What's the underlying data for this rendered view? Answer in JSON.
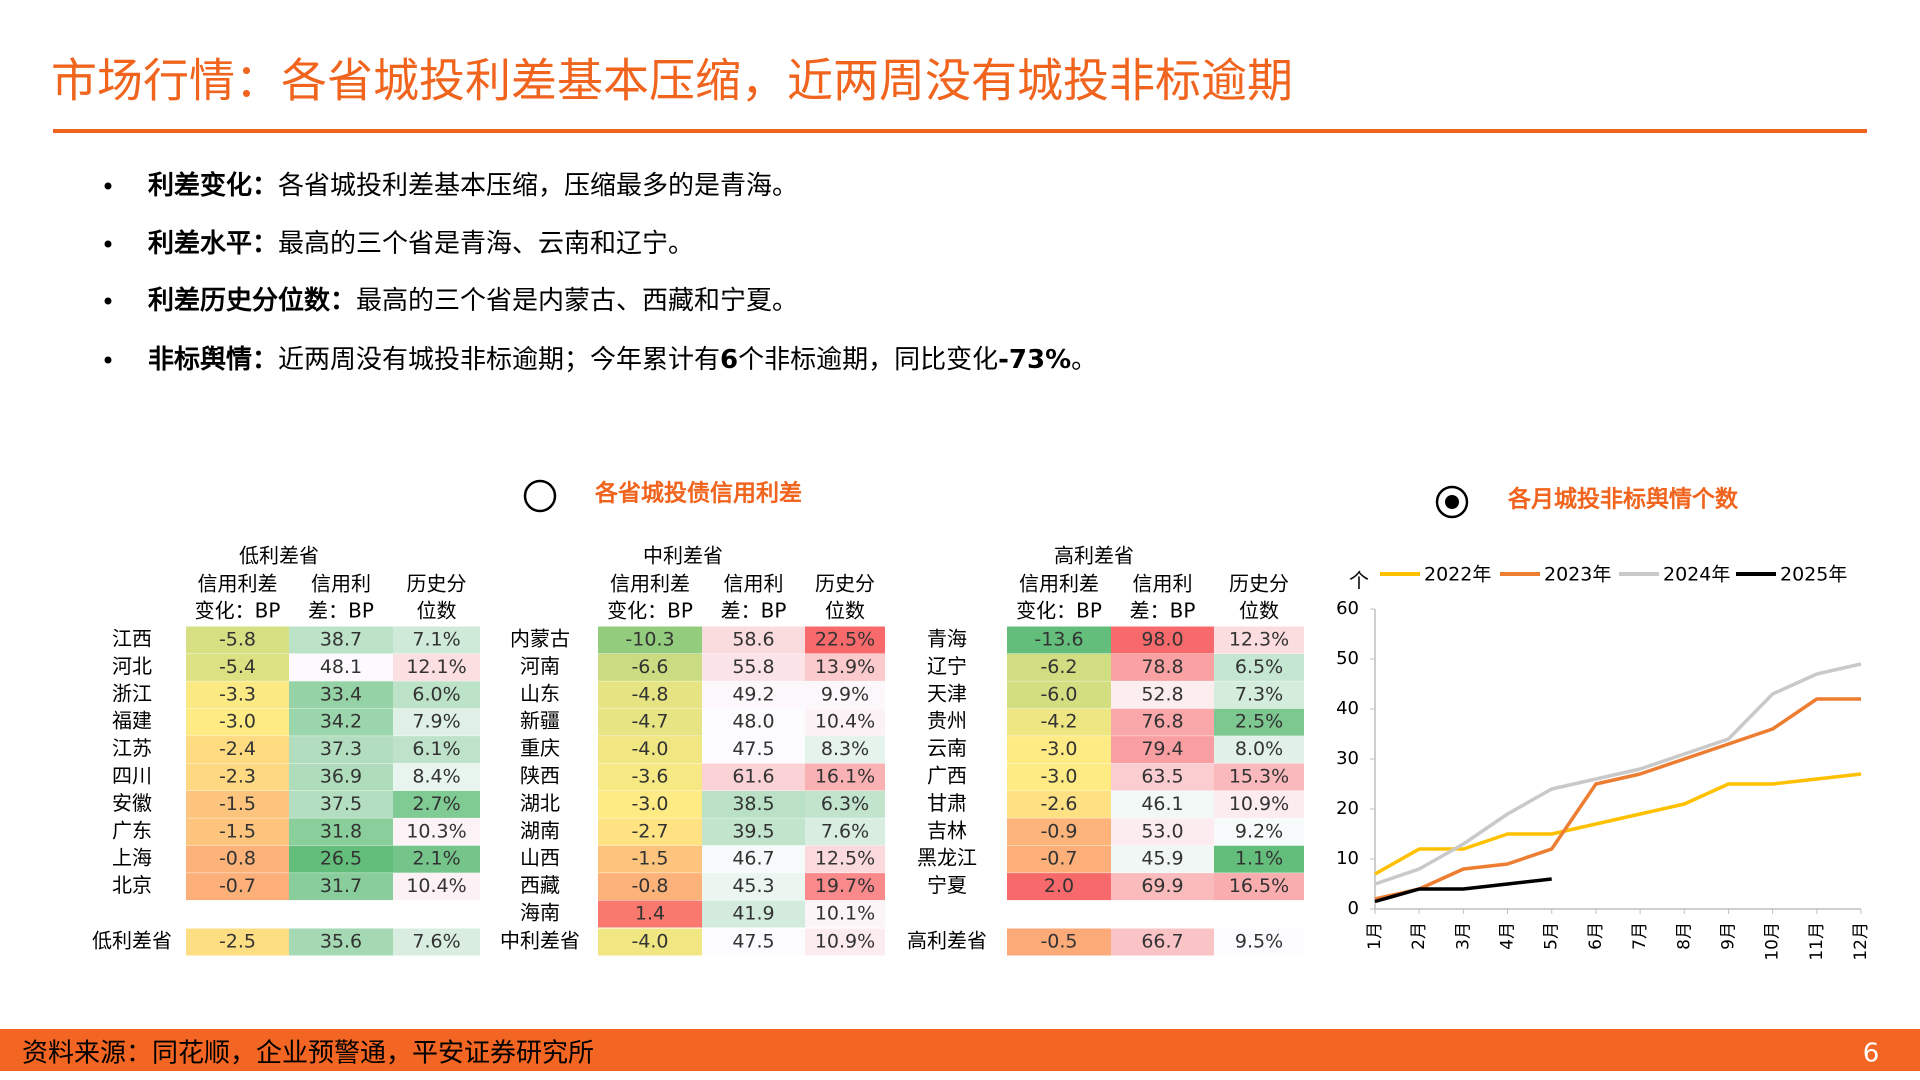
{
  "header": {
    "title": "市场行情：各省城投利差基本压缩，近两周没有城投非标逾期"
  },
  "bullets": [
    {
      "label": "利差变化：",
      "parts": [
        {
          "text": "各省城投利差基本压缩，压缩最多的是青海。"
        }
      ]
    },
    {
      "label": "利差水平：",
      "parts": [
        {
          "text": "最高的三个省是青海、云南和辽宁。"
        }
      ]
    },
    {
      "label": "利差历史分位数：",
      "parts": [
        {
          "text": "最高的三个省是内蒙古、西藏和宁夏。"
        }
      ]
    },
    {
      "label": "非标舆情：",
      "parts": [
        {
          "text": "近两周没有城投非标逾期；今年累计有"
        },
        {
          "text": "6",
          "bold": true
        },
        {
          "text": "个非标逾期，同比变化"
        },
        {
          "text": "-73%",
          "bold": true
        },
        {
          "text": "。"
        }
      ]
    }
  ],
  "spread_section": {
    "title": "各省城投债信用利差",
    "change_colors": [
      "#63be7b",
      "#ffeb84",
      "#f8696b"
    ],
    "level_colors": [
      "#63be7b",
      "#fcfcff",
      "#f8696b"
    ],
    "groups": [
      {
        "name": "低利差省",
        "columns": [
          [
            "信用利差",
            "变化：BP"
          ],
          [
            "信用利",
            "差：BP"
          ],
          [
            "历史分",
            "位数"
          ]
        ],
        "rows": [
          [
            "江西",
            "-5.8",
            "38.7",
            "7.1%"
          ],
          [
            "河北",
            "-5.4",
            "48.1",
            "12.1%"
          ],
          [
            "浙江",
            "-3.3",
            "33.4",
            "6.0%"
          ],
          [
            "福建",
            "-3.0",
            "34.2",
            "7.9%"
          ],
          [
            "江苏",
            "-2.4",
            "37.3",
            "6.1%"
          ],
          [
            "四川",
            "-2.3",
            "36.9",
            "8.4%"
          ],
          [
            "安徽",
            "-1.5",
            "37.5",
            "2.7%"
          ],
          [
            "广东",
            "-1.5",
            "31.8",
            "10.3%"
          ],
          [
            "上海",
            "-0.8",
            "26.5",
            "2.1%"
          ],
          [
            "北京",
            "-0.7",
            "31.7",
            "10.4%"
          ]
        ],
        "summary": [
          "低利差省",
          "-2.5",
          "35.6",
          "7.6%"
        ]
      },
      {
        "name": "中利差省",
        "columns": [
          [
            "信用利差",
            "变化：BP"
          ],
          [
            "信用利",
            "差：BP"
          ],
          [
            "历史分",
            "位数"
          ]
        ],
        "rows": [
          [
            "内蒙古",
            "-10.3",
            "58.6",
            "22.5%"
          ],
          [
            "河南",
            "-6.6",
            "55.8",
            "13.9%"
          ],
          [
            "山东",
            "-4.8",
            "49.2",
            "9.9%"
          ],
          [
            "新疆",
            "-4.7",
            "48.0",
            "10.4%"
          ],
          [
            "重庆",
            "-4.0",
            "47.5",
            "8.3%"
          ],
          [
            "陕西",
            "-3.6",
            "61.6",
            "16.1%"
          ],
          [
            "湖北",
            "-3.0",
            "38.5",
            "6.3%"
          ],
          [
            "湖南",
            "-2.7",
            "39.5",
            "7.6%"
          ],
          [
            "山西",
            "-1.5",
            "46.7",
            "12.5%"
          ],
          [
            "西藏",
            "-0.8",
            "45.3",
            "19.7%"
          ],
          [
            "海南",
            "1.4",
            "41.9",
            "10.1%"
          ]
        ],
        "summary": [
          "中利差省",
          "-4.0",
          "47.5",
          "10.9%"
        ]
      },
      {
        "name": "高利差省",
        "columns": [
          [
            "信用利差",
            "变化：BP"
          ],
          [
            "信用利",
            "差：BP"
          ],
          [
            "历史分",
            "位数"
          ]
        ],
        "rows": [
          [
            "青海",
            "-13.6",
            "98.0",
            "12.3%"
          ],
          [
            "辽宁",
            "-6.2",
            "78.8",
            "6.5%"
          ],
          [
            "天津",
            "-6.0",
            "52.8",
            "7.3%"
          ],
          [
            "贵州",
            "-4.2",
            "76.8",
            "2.5%"
          ],
          [
            "云南",
            "-3.0",
            "79.4",
            "8.0%"
          ],
          [
            "广西",
            "-3.0",
            "63.5",
            "15.3%"
          ],
          [
            "甘肃",
            "-2.6",
            "46.1",
            "10.9%"
          ],
          [
            "吉林",
            "-0.9",
            "53.0",
            "9.2%"
          ],
          [
            "黑龙江",
            "-0.7",
            "45.9",
            "1.1%"
          ],
          [
            "宁夏",
            "2.0",
            "69.9",
            "16.5%"
          ]
        ],
        "summary": [
          "高利差省",
          "-0.5",
          "66.7",
          "9.5%"
        ]
      }
    ]
  },
  "chart_data": {
    "type": "line",
    "title": "各月城投非标舆情个数",
    "y_label": "个",
    "categories": [
      "1月",
      "2月",
      "3月",
      "4月",
      "5月",
      "6月",
      "7月",
      "8月",
      "9月",
      "10月",
      "11月",
      "12月"
    ],
    "series": [
      {
        "name": "2022年",
        "color": "#ffc000",
        "values": [
          7,
          12,
          12,
          15,
          15,
          17,
          19,
          21,
          25,
          25,
          26,
          27
        ]
      },
      {
        "name": "2023年",
        "color": "#ed7d31",
        "values": [
          2,
          4,
          8,
          9,
          12,
          25,
          27,
          30,
          33,
          36,
          42,
          42
        ]
      },
      {
        "name": "2024年",
        "color": "#c9c9c9",
        "values": [
          5,
          8,
          13,
          19,
          24,
          26,
          28,
          31,
          34,
          43,
          47,
          49
        ]
      },
      {
        "name": "2025年",
        "color": "#000000",
        "values": [
          1.5,
          4,
          4,
          5,
          6,
          null,
          null,
          null,
          null,
          null,
          null,
          null
        ]
      }
    ],
    "ylim": [
      0,
      60
    ],
    "yticks": [
      0,
      10,
      20,
      30,
      40,
      50,
      60
    ],
    "legend": "top"
  },
  "footer": {
    "source": "资料来源：同花顺，企业预警通，平安证券研究所",
    "page": "6"
  }
}
